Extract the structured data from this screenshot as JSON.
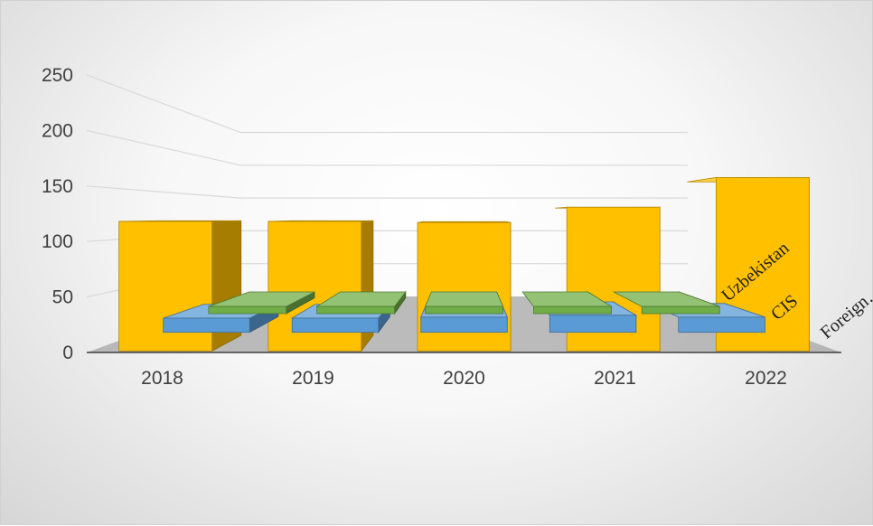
{
  "chart_data": {
    "type": "bar",
    "subtype": "3d-column",
    "categories": [
      "2018",
      "2019",
      "2020",
      "2021",
      "2022"
    ],
    "series": [
      {
        "name": "Foreign…",
        "color": "#FFC000",
        "values": [
          118,
          118,
          117,
          131,
          158
        ]
      },
      {
        "name": "CIS",
        "color": "#5B9BD5",
        "values": [
          15,
          15,
          16,
          18,
          16
        ]
      },
      {
        "name": "Uzbekistan",
        "color": "#70AD47",
        "values": [
          2,
          2,
          3,
          2,
          3
        ]
      }
    ],
    "yticks": [
      0,
      50,
      100,
      150,
      200,
      250
    ],
    "ylim": [
      0,
      250
    ],
    "grid": true,
    "legend": "none",
    "title": "",
    "xlabel": "",
    "ylabel": ""
  }
}
